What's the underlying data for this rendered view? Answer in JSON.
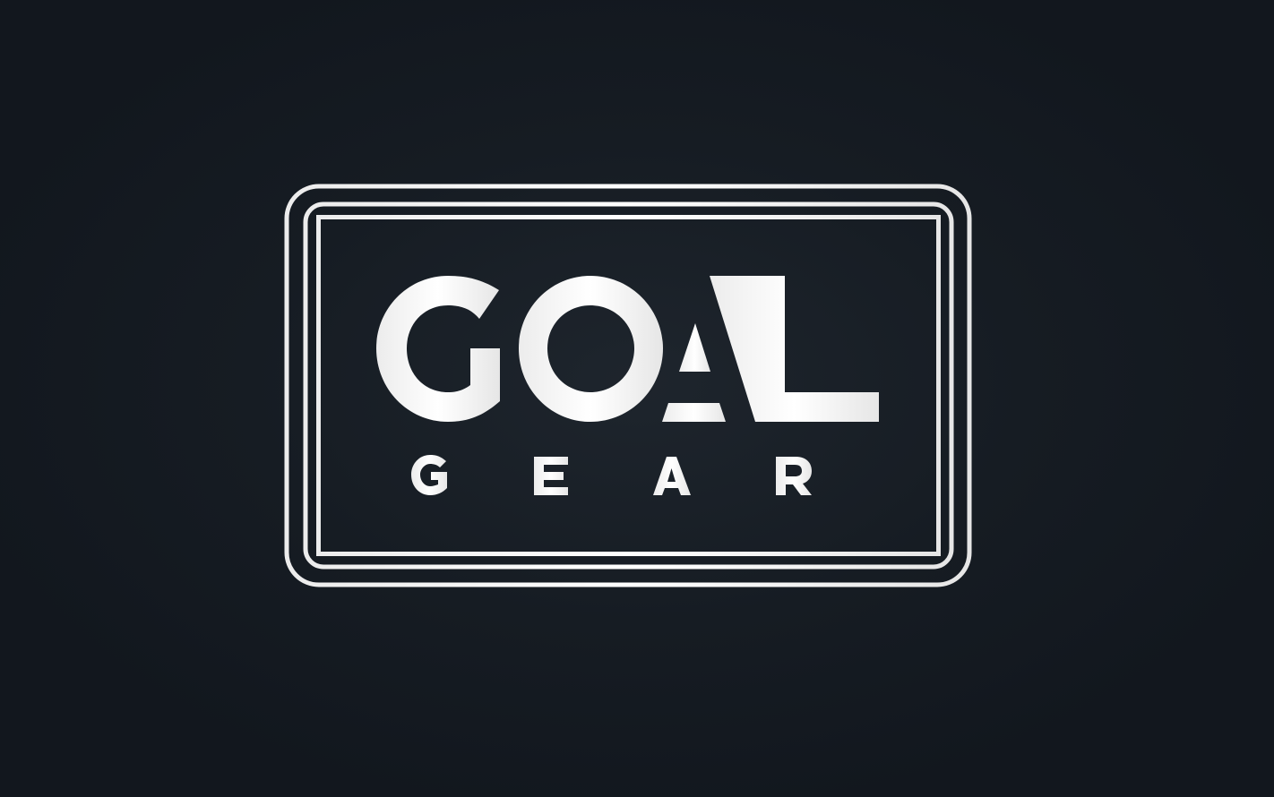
{
  "logo": {
    "wordmark": "GOAL",
    "tagline": "GEAR",
    "colors": {
      "background": "#141a21",
      "foreground": "#f4f4f4"
    }
  }
}
